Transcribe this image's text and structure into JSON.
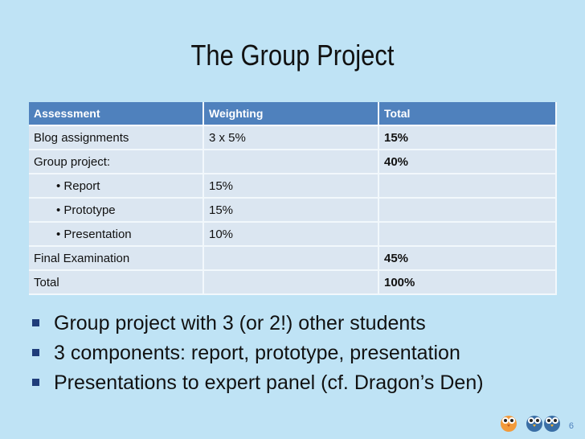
{
  "title": "The Group Project",
  "table": {
    "headers": [
      "Assessment",
      "Weighting",
      "Total"
    ],
    "rows": [
      {
        "assessment": "Blog assignments",
        "weighting": "3 x 5%",
        "total": "15%"
      },
      {
        "assessment": "Group project:",
        "weighting": "",
        "total": "40%"
      },
      {
        "assessment": "• Report",
        "weighting": "15%",
        "total": ""
      },
      {
        "assessment": "• Prototype",
        "weighting": "15%",
        "total": ""
      },
      {
        "assessment": "• Presentation",
        "weighting": "10%",
        "total": ""
      },
      {
        "assessment": "Final Examination",
        "weighting": "",
        "total": "45%"
      },
      {
        "assessment": "Total",
        "weighting": "",
        "total": "100%"
      }
    ]
  },
  "bullets": [
    "Group project with 3 (or 2!) other students",
    "3 components: report, prototype, presentation",
    "Presentations to expert panel (cf. Dragon’s Den)"
  ],
  "page_number": "6",
  "icons": [
    "owl-orange-icon",
    "owl-blue-icon",
    "owl-blue-icon"
  ],
  "colors": {
    "background": "#bfe3f5",
    "header": "#4f81bd",
    "cell": "#dbe6f1",
    "bullet": "#1f3d7a"
  }
}
